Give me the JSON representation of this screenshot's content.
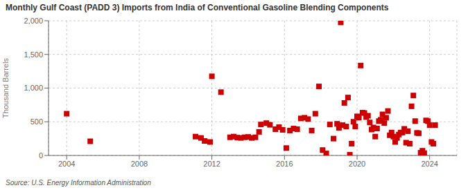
{
  "chart_data": {
    "type": "scatter",
    "title": "Monthly Gulf Coast (PADD 3) Imports from India of Conventional Gasoline Blending Components",
    "ylabel": "Thousand Barrels",
    "source": "Source: U.S. Energy Information Administration",
    "color": "#cc0000",
    "marker": "square",
    "grid": true,
    "xlim": [
      2003.0,
      2025.5
    ],
    "ylim": [
      0,
      2000
    ],
    "xticks": [
      2004,
      2008,
      2012,
      2016,
      2020,
      2024
    ],
    "yticks": [
      0,
      500,
      {
        "value": 1000,
        "label": "1,000"
      },
      {
        "value": 1500,
        "label": "1,500"
      },
      {
        "value": 2000,
        "label": "2,000"
      }
    ],
    "x": [
      2004.0,
      2005.3,
      2011.1,
      2011.4,
      2011.6,
      2011.9,
      2012.0,
      2012.5,
      2013.0,
      2013.2,
      2013.4,
      2013.6,
      2013.8,
      2014.0,
      2014.2,
      2014.4,
      2014.6,
      2014.7,
      2015.0,
      2015.2,
      2015.5,
      2015.7,
      2015.9,
      2016.1,
      2016.3,
      2016.5,
      2016.7,
      2016.9,
      2017.1,
      2017.3,
      2017.5,
      2017.7,
      2017.9,
      2018.1,
      2018.3,
      2018.5,
      2018.7,
      2018.9,
      2019.0,
      2019.1,
      2019.2,
      2019.3,
      2019.4,
      2019.5,
      2019.6,
      2019.7,
      2019.8,
      2019.9,
      2020.0,
      2020.1,
      2020.2,
      2020.3,
      2020.4,
      2020.5,
      2020.6,
      2020.7,
      2020.8,
      2020.9,
      2021.0,
      2021.1,
      2021.2,
      2021.3,
      2021.4,
      2021.5,
      2021.6,
      2021.7,
      2021.8,
      2021.9,
      2022.0,
      2022.1,
      2022.2,
      2022.3,
      2022.4,
      2022.5,
      2022.6,
      2022.7,
      2022.8,
      2022.9,
      2023.0,
      2023.1,
      2023.2,
      2023.3,
      2023.4,
      2023.5,
      2023.6,
      2023.7,
      2023.8,
      2023.9,
      2024.0,
      2024.1,
      2024.2,
      2024.3
    ],
    "values": [
      620,
      210,
      280,
      260,
      215,
      200,
      1175,
      940,
      270,
      280,
      265,
      260,
      270,
      275,
      260,
      270,
      350,
      460,
      480,
      455,
      390,
      420,
      380,
      110,
      370,
      400,
      390,
      550,
      560,
      540,
      370,
      620,
      1025,
      80,
      30,
      460,
      250,
      470,
      410,
      1975,
      450,
      780,
      430,
      860,
      10,
      175,
      500,
      430,
      580,
      560,
      1335,
      635,
      630,
      570,
      590,
      490,
      385,
      415,
      280,
      400,
      510,
      530,
      610,
      480,
      560,
      660,
      300,
      340,
      280,
      200,
      260,
      310,
      340,
      340,
      395,
      190,
      360,
      175,
      730,
      890,
      510,
      335,
      330,
      40,
      70,
      35,
      520,
      510,
      450,
      200,
      175,
      450
    ]
  }
}
